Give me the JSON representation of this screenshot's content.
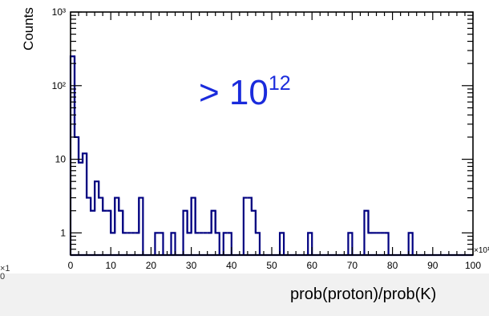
{
  "chart_data": {
    "type": "histogram",
    "title": "",
    "xlabel": "prob(proton)/prob(K)",
    "ylabel": "Counts",
    "x_multiplier_label": "×10¹²",
    "annotation": {
      "text": "> 10",
      "sup": "12",
      "color": "#1a2bdc"
    },
    "xlim": [
      0,
      100
    ],
    "ylim": [
      0.5,
      1000
    ],
    "yscale": "log",
    "x_ticks": [
      0,
      10,
      20,
      30,
      40,
      50,
      60,
      70,
      80,
      90,
      100
    ],
    "y_ticks": [
      "1",
      "10",
      "10²",
      "10³"
    ],
    "line_color": "#000080",
    "bin_width": 1,
    "bins": [
      {
        "x": 0,
        "count": 250
      },
      {
        "x": 1,
        "count": 20
      },
      {
        "x": 2,
        "count": 9
      },
      {
        "x": 3,
        "count": 12
      },
      {
        "x": 4,
        "count": 3
      },
      {
        "x": 5,
        "count": 2
      },
      {
        "x": 6,
        "count": 5
      },
      {
        "x": 7,
        "count": 3
      },
      {
        "x": 8,
        "count": 2
      },
      {
        "x": 9,
        "count": 2
      },
      {
        "x": 10,
        "count": 1
      },
      {
        "x": 11,
        "count": 3
      },
      {
        "x": 12,
        "count": 2
      },
      {
        "x": 13,
        "count": 1
      },
      {
        "x": 14,
        "count": 1
      },
      {
        "x": 15,
        "count": 1
      },
      {
        "x": 16,
        "count": 1
      },
      {
        "x": 17,
        "count": 3
      },
      {
        "x": 21,
        "count": 1
      },
      {
        "x": 22,
        "count": 1
      },
      {
        "x": 25,
        "count": 1
      },
      {
        "x": 28,
        "count": 2
      },
      {
        "x": 29,
        "count": 1
      },
      {
        "x": 30,
        "count": 3
      },
      {
        "x": 31,
        "count": 1
      },
      {
        "x": 32,
        "count": 1
      },
      {
        "x": 33,
        "count": 1
      },
      {
        "x": 34,
        "count": 1
      },
      {
        "x": 35,
        "count": 2
      },
      {
        "x": 36,
        "count": 1
      },
      {
        "x": 38,
        "count": 1
      },
      {
        "x": 39,
        "count": 1
      },
      {
        "x": 43,
        "count": 3
      },
      {
        "x": 44,
        "count": 3
      },
      {
        "x": 45,
        "count": 2
      },
      {
        "x": 46,
        "count": 1
      },
      {
        "x": 52,
        "count": 1
      },
      {
        "x": 59,
        "count": 1
      },
      {
        "x": 69,
        "count": 1
      },
      {
        "x": 73,
        "count": 2
      },
      {
        "x": 74,
        "count": 1
      },
      {
        "x": 75,
        "count": 1
      },
      {
        "x": 76,
        "count": 1
      },
      {
        "x": 77,
        "count": 1
      },
      {
        "x": 78,
        "count": 1
      },
      {
        "x": 84,
        "count": 1
      }
    ]
  },
  "margin_fragment": {
    "line1": "×1",
    "line2": "0"
  }
}
